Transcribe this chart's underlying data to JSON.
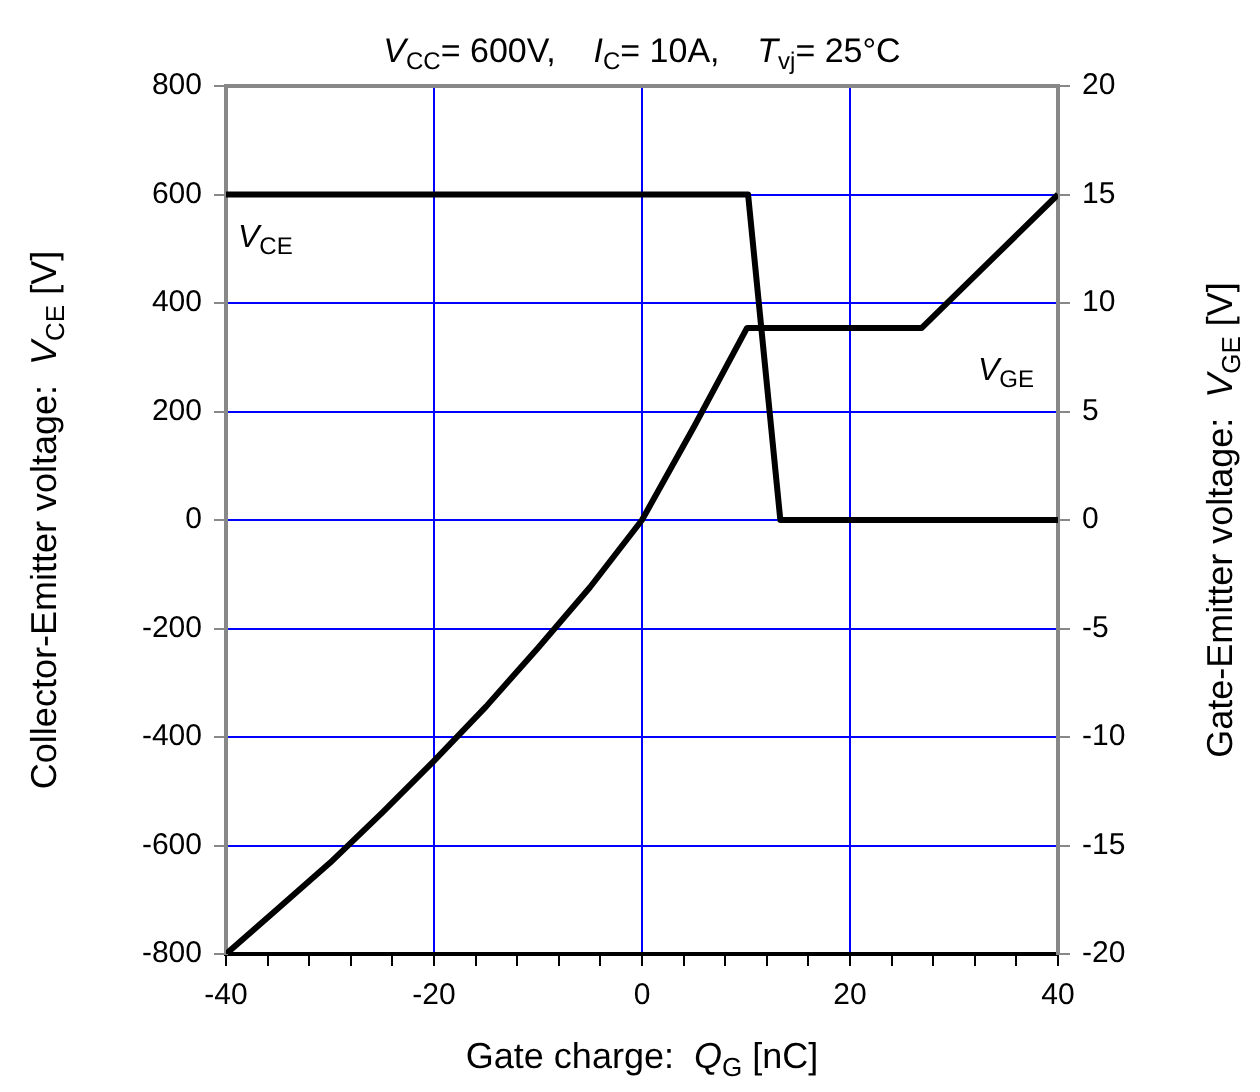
{
  "chart_data": {
    "type": "line",
    "title": "V$_{CC}$= 600V,    I$_{C}$= 10A,    T$_{vj}$= 25°C",
    "xlabel": "Gate charge:  Q$_{G}$ [nC]",
    "ylabel": "Collector-Emitter voltage:  V$_{CE}$ [V]",
    "y2label": "Gate-Emitter voltage:  V$_{GE}$ [V]",
    "series": [
      {
        "name": "V$_{CE}$",
        "color": "#000000",
        "x": [
          -40,
          10.2,
          13.3,
          40
        ],
        "values": [
          600,
          600,
          0,
          0
        ]
      },
      {
        "name": "V$_{GE}$",
        "color": "#000000",
        "axis": "y2",
        "x": [
          -40,
          -35,
          -30,
          -25,
          -20,
          -15,
          -10,
          -5,
          0,
          5,
          10.1,
          26.9,
          40
        ],
        "values": [
          -20,
          -17.9,
          -15.8,
          -13.5,
          -11.1,
          -8.6,
          -5.9,
          -3.1,
          0,
          4.3,
          8.85,
          8.85,
          15
        ]
      }
    ],
    "xlim": [
      -40,
      40
    ],
    "xticks": [
      -40,
      {
        "value": -36,
        "label": null
      },
      {
        "value": -32,
        "label": null
      },
      {
        "value": -28,
        "label": null
      },
      {
        "value": -24,
        "label": null
      },
      -20,
      {
        "value": -16,
        "label": null
      },
      {
        "value": -12,
        "label": null
      },
      {
        "value": -8,
        "label": null
      },
      {
        "value": -4,
        "label": null
      },
      0,
      {
        "value": 4,
        "label": null
      },
      {
        "value": 8,
        "label": null
      },
      {
        "value": 12,
        "label": null
      },
      {
        "value": 16,
        "label": null
      },
      20,
      {
        "value": 24,
        "label": null
      },
      {
        "value": 28,
        "label": null
      },
      {
        "value": 32,
        "label": null
      },
      {
        "value": 36,
        "label": null
      },
      40
    ],
    "ylim": [
      -800,
      800
    ],
    "yticks": [
      -800,
      -600,
      -400,
      -200,
      0,
      200,
      400,
      600,
      800
    ],
    "y2lim": [
      -20,
      20
    ],
    "y2ticks": [
      -20,
      -15,
      -10,
      -5,
      0,
      5,
      10,
      15,
      20
    ],
    "grid": true,
    "legend": false,
    "marker": "none",
    "line_style": "solid"
  }
}
